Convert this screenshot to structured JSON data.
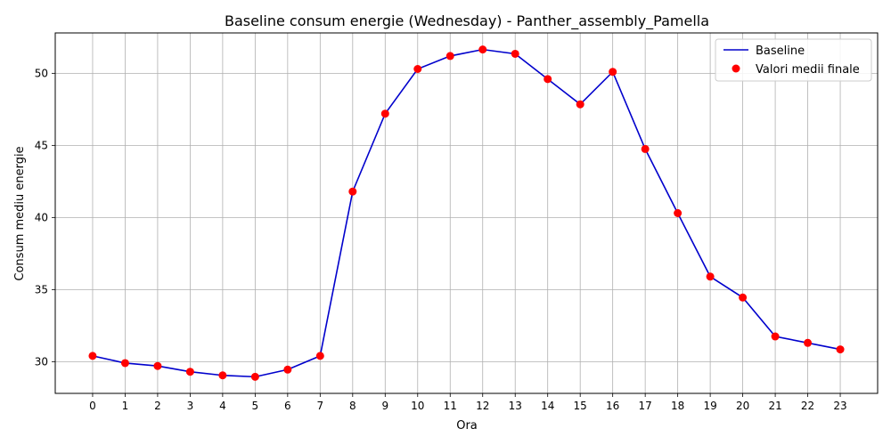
{
  "chart_data": {
    "type": "line",
    "title": "Baseline consum energie (Wednesday) - Panther_assembly_Pamella",
    "xlabel": "Ora",
    "ylabel": "Consum mediu energie",
    "x": [
      0,
      1,
      2,
      3,
      4,
      5,
      6,
      7,
      8,
      9,
      10,
      11,
      12,
      13,
      14,
      15,
      16,
      17,
      18,
      19,
      20,
      21,
      22,
      23
    ],
    "x_ticks": [
      "0",
      "1",
      "2",
      "3",
      "4",
      "5",
      "6",
      "7",
      "8",
      "9",
      "10",
      "11",
      "12",
      "13",
      "14",
      "15",
      "16",
      "17",
      "18",
      "19",
      "20",
      "21",
      "22",
      "23"
    ],
    "y_ticks": [
      30,
      35,
      40,
      45,
      50
    ],
    "y_tick_labels": [
      "30",
      "35",
      "40",
      "45",
      "50"
    ],
    "xlim": [
      -1.15,
      24.15
    ],
    "ylim": [
      27.8,
      52.8
    ],
    "grid": true,
    "legend_position": "top-right",
    "series": [
      {
        "name": "Baseline",
        "kind": "line",
        "color": "#0000cc",
        "values": [
          30.4,
          29.9,
          29.7,
          29.3,
          29.05,
          28.95,
          29.45,
          30.4,
          41.8,
          47.2,
          50.3,
          51.2,
          51.65,
          51.35,
          49.6,
          47.85,
          50.1,
          44.75,
          40.3,
          35.9,
          34.45,
          31.75,
          31.3,
          30.85
        ]
      },
      {
        "name": "Valori medii finale",
        "kind": "scatter",
        "color": "#ff0000",
        "values": [
          30.4,
          29.9,
          29.7,
          29.3,
          29.05,
          28.95,
          29.45,
          30.4,
          41.8,
          47.2,
          50.3,
          51.2,
          51.65,
          51.35,
          49.6,
          47.85,
          50.1,
          44.75,
          40.3,
          35.9,
          34.45,
          31.75,
          31.3,
          30.85
        ]
      }
    ]
  }
}
